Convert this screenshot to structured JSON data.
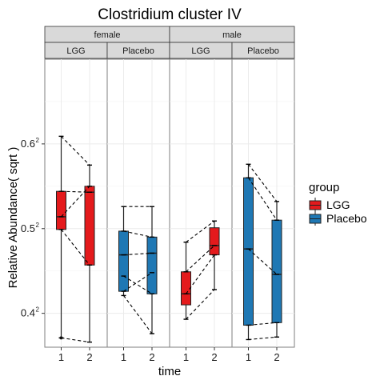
{
  "chart_data": {
    "type": "boxplot",
    "title": "Clostridium cluster IV",
    "xlabel": "time",
    "ylabel": "Relative Abundance( sqrt )",
    "ylim": [
      0.36,
      0.7
    ],
    "y_ticks": [
      {
        "value": 0.4,
        "base": "0.4",
        "exp": "2"
      },
      {
        "value": 0.5,
        "base": "0.5",
        "exp": "2"
      },
      {
        "value": 0.6,
        "base": "0.6",
        "exp": "2"
      }
    ],
    "x_ticks": [
      "1",
      "2"
    ],
    "facet_rows": [
      "female",
      "male"
    ],
    "facet_cols": [
      "LGG",
      "Placebo"
    ],
    "legend": {
      "title": "group",
      "items": [
        {
          "label": "LGG",
          "color": "#E41A1C"
        },
        {
          "label": "Placebo",
          "color": "#1F78B4"
        }
      ]
    },
    "panels": [
      {
        "sex": "female",
        "group": "LGG",
        "color": "#E41A1C",
        "boxes": [
          {
            "time": "1",
            "min": 0.371,
            "q1": 0.499,
            "median": 0.514,
            "q3": 0.544,
            "max": 0.609,
            "outliers": [
              0.371
            ]
          },
          {
            "time": "2",
            "min": 0.366,
            "q1": 0.457,
            "median": 0.543,
            "q3": 0.55,
            "max": 0.575,
            "outliers": []
          }
        ],
        "lines": [
          [
            0.609,
            0.575
          ],
          [
            0.544,
            0.543
          ],
          [
            0.514,
            0.55
          ],
          [
            0.499,
            0.457
          ],
          [
            0.371,
            0.366
          ]
        ]
      },
      {
        "sex": "female",
        "group": "Placebo",
        "color": "#1F78B4",
        "boxes": [
          {
            "time": "1",
            "min": 0.421,
            "q1": 0.426,
            "median": 0.469,
            "q3": 0.497,
            "max": 0.526,
            "outliers": []
          },
          {
            "time": "2",
            "min": 0.376,
            "q1": 0.423,
            "median": 0.471,
            "q3": 0.49,
            "max": 0.526,
            "outliers": []
          }
        ],
        "lines": [
          [
            0.526,
            0.526
          ],
          [
            0.497,
            0.49
          ],
          [
            0.469,
            0.471
          ],
          [
            0.444,
            0.423
          ],
          [
            0.426,
            0.448
          ],
          [
            0.421,
            0.376
          ]
        ]
      },
      {
        "sex": "male",
        "group": "LGG",
        "color": "#E41A1C",
        "boxes": [
          {
            "time": "1",
            "min": 0.393,
            "q1": 0.41,
            "median": 0.423,
            "q3": 0.449,
            "max": 0.484,
            "outliers": []
          },
          {
            "time": "2",
            "min": 0.428,
            "q1": 0.469,
            "median": 0.48,
            "q3": 0.501,
            "max": 0.509,
            "outliers": []
          }
        ],
        "lines": [
          [
            0.484,
            0.509
          ],
          [
            0.449,
            0.48
          ],
          [
            0.423,
            0.469
          ],
          [
            0.393,
            0.428
          ]
        ]
      },
      {
        "sex": "male",
        "group": "Placebo",
        "color": "#1F78B4",
        "boxes": [
          {
            "time": "1",
            "min": 0.369,
            "q1": 0.386,
            "median": 0.476,
            "q3": 0.56,
            "max": 0.576,
            "outliers": []
          },
          {
            "time": "2",
            "min": 0.372,
            "q1": 0.389,
            "median": 0.446,
            "q3": 0.51,
            "max": 0.532,
            "outliers": []
          }
        ],
        "lines": [
          [
            0.576,
            0.532
          ],
          [
            0.56,
            0.51
          ],
          [
            0.476,
            0.446
          ],
          [
            0.386,
            0.389
          ],
          [
            0.369,
            0.372
          ]
        ]
      }
    ]
  }
}
